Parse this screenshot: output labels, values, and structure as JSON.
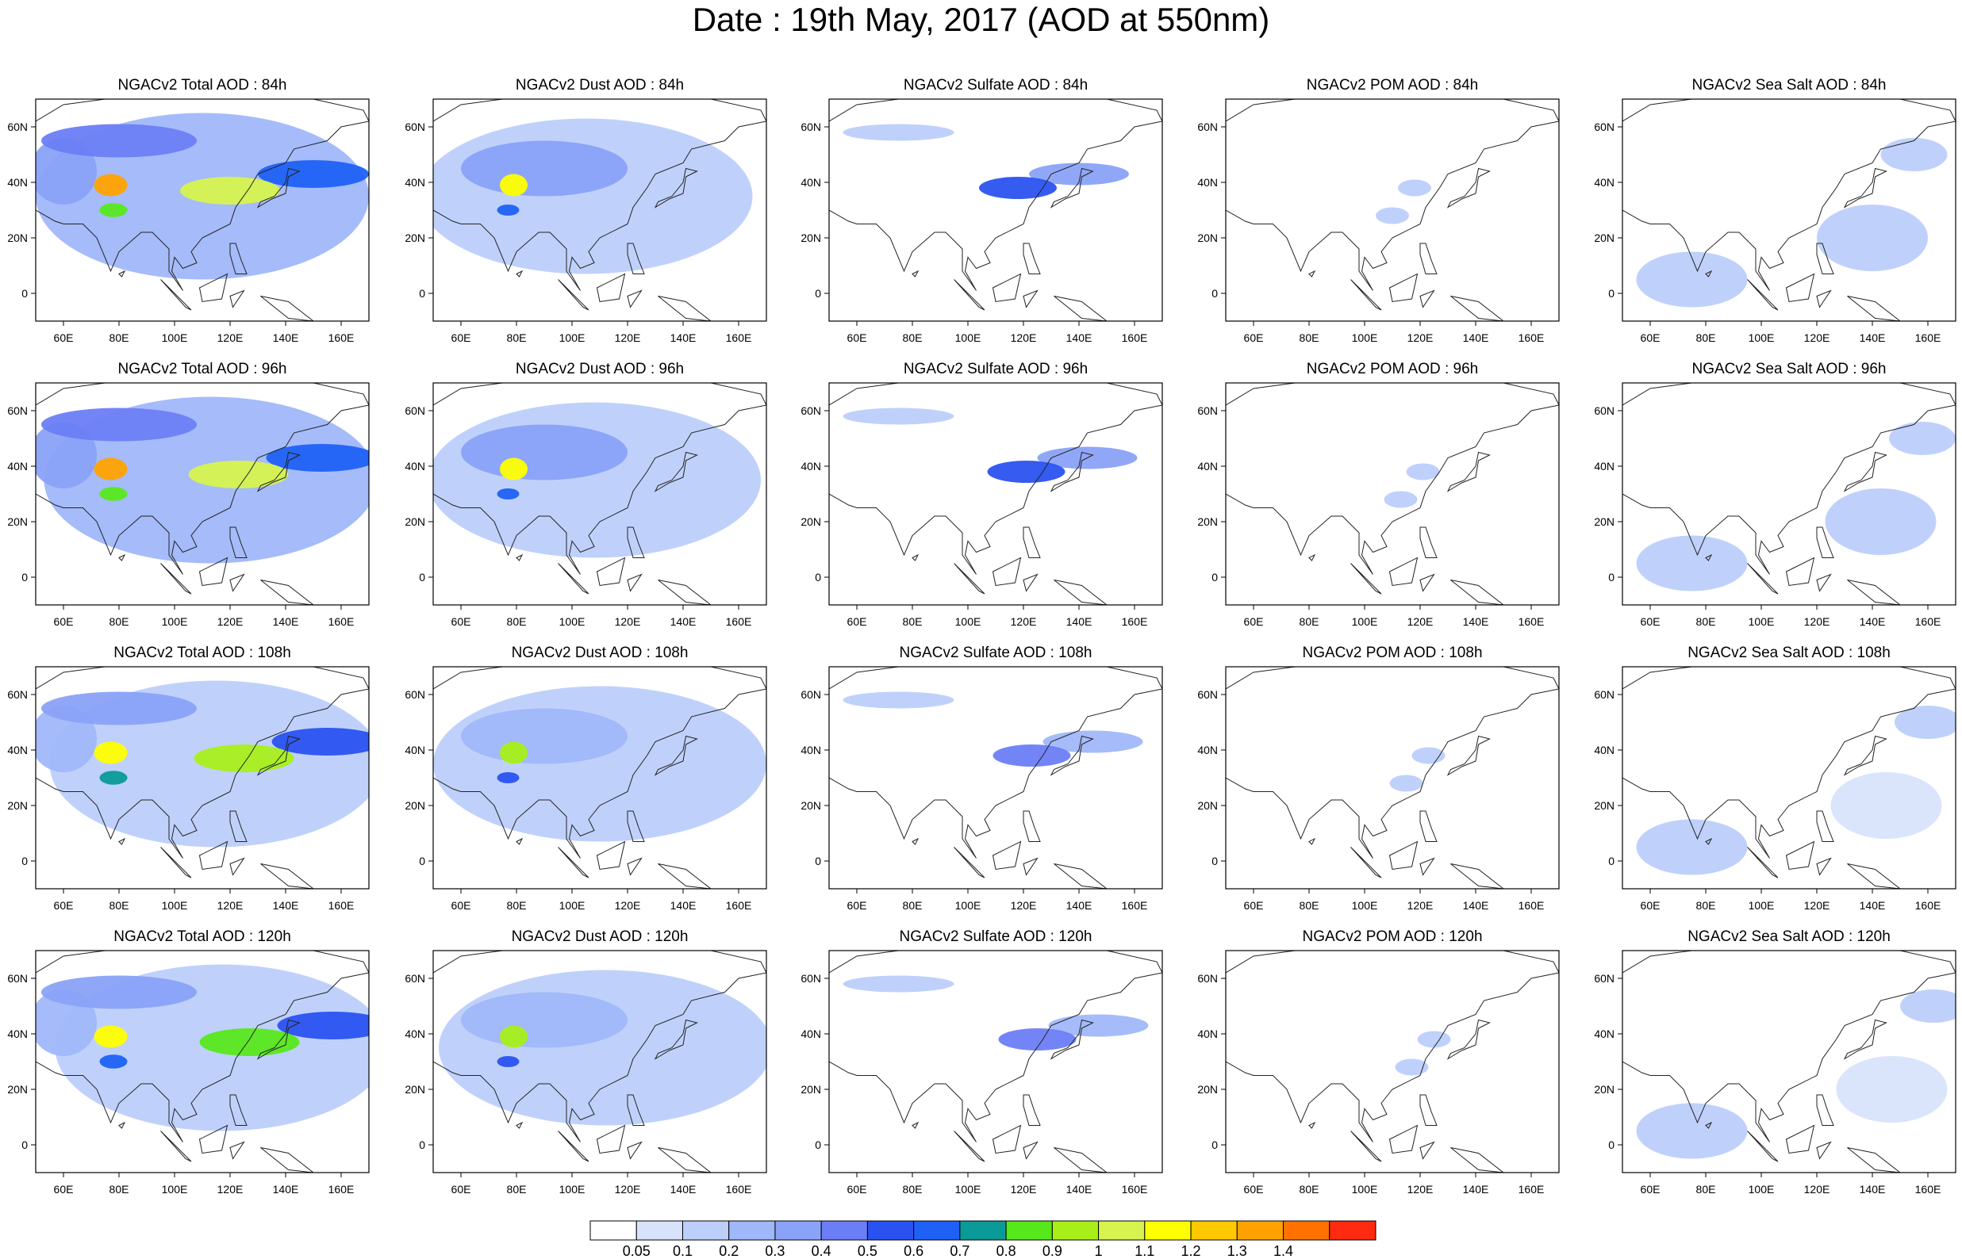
{
  "title": "Date : 19th May, 2017 (AOD at 550nm)",
  "panel_rows": [
    {
      "forecast_hour": "84h",
      "titles": [
        "NGACv2 Total AOD : 84h",
        "NGACv2 Dust AOD : 84h",
        "NGACv2 Sulfate AOD : 84h",
        "NGACv2 POM AOD : 84h",
        "NGACv2 Sea Salt AOD : 84h"
      ]
    },
    {
      "forecast_hour": "96h",
      "titles": [
        "NGACv2 Total AOD : 96h",
        "NGACv2 Dust AOD : 96h",
        "NGACv2 Sulfate AOD : 96h",
        "NGACv2 POM AOD : 96h",
        "NGACv2 Sea Salt AOD : 96h"
      ]
    },
    {
      "forecast_hour": "108h",
      "titles": [
        "NGACv2 Total AOD : 108h",
        "NGACv2 Dust AOD : 108h",
        "NGACv2 Sulfate AOD : 108h",
        "NGACv2 POM AOD : 108h",
        "NGACv2 Sea Salt AOD : 108h"
      ]
    },
    {
      "forecast_hour": "120h",
      "titles": [
        "NGACv2 Total AOD : 120h",
        "NGACv2 Dust AOD : 120h",
        "NGACv2 Sulfate AOD : 120h",
        "NGACv2 POM AOD : 120h",
        "NGACv2 Sea Salt  AOD : 120h"
      ]
    }
  ],
  "map_axes": {
    "lon_ticks": [
      "60E",
      "80E",
      "100E",
      "120E",
      "140E",
      "160E"
    ],
    "lat_ticks": [
      "60N",
      "40N",
      "20N",
      "0"
    ],
    "lon_range": [
      50,
      170
    ],
    "lat_range": [
      -10,
      70
    ]
  },
  "colorbar": {
    "labels": [
      "0.05",
      "0.1",
      "0.2",
      "0.3",
      "0.4",
      "0.5",
      "0.6",
      "0.7",
      "0.8",
      "0.9",
      "1",
      "1.1",
      "1.2",
      "1.3",
      "1.4"
    ],
    "colors": [
      "#ffffff",
      "#d8e3fb",
      "#bccffb",
      "#a0b7fa",
      "#8aa2f8",
      "#6c7ef5",
      "#2a52f0",
      "#1f61f5",
      "#0a9a98",
      "#57e81c",
      "#a8ef1a",
      "#d6f34f",
      "#ffff00",
      "#ffc800",
      "#ffa200",
      "#ff7200",
      "#ff2a10"
    ]
  },
  "chart_data": {
    "type": "heatmap",
    "variable": "AOD at 550nm",
    "levels": [
      0.05,
      0.1,
      0.2,
      0.3,
      0.4,
      0.5,
      0.6,
      0.7,
      0.8,
      0.9,
      1,
      1.1,
      1.2,
      1.3,
      1.4
    ],
    "species": [
      "Total",
      "Dust",
      "Sulfate",
      "POM",
      "Sea Salt"
    ],
    "forecast_hours": [
      "84h",
      "96h",
      "108h",
      "120h"
    ],
    "xlim": [
      50,
      170
    ],
    "ylim": [
      -10,
      70
    ],
    "features": {
      "Total": [
        {
          "lon": 77,
          "lat": 39,
          "rx": 6,
          "ry": 4,
          "v": 1.3
        },
        {
          "lon": 78,
          "lat": 30,
          "rx": 5,
          "ry": 2.5,
          "v": 0.8
        },
        {
          "lon": 120,
          "lat": 37,
          "rx": 18,
          "ry": 5,
          "v": 1.0
        },
        {
          "lon": 150,
          "lat": 43,
          "rx": 20,
          "ry": 5,
          "v": 0.6
        },
        {
          "lon": 80,
          "lat": 55,
          "rx": 28,
          "ry": 6,
          "v": 0.4
        },
        {
          "lon": 60,
          "lat": 44,
          "rx": 12,
          "ry": 12,
          "v": 0.3
        },
        {
          "lon": 110,
          "lat": 35,
          "rx": 60,
          "ry": 30,
          "v": 0.2
        }
      ],
      "Dust": [
        {
          "lon": 79,
          "lat": 39,
          "rx": 5,
          "ry": 4,
          "v": 1.1
        },
        {
          "lon": 77,
          "lat": 30,
          "rx": 4,
          "ry": 2,
          "v": 0.6
        },
        {
          "lon": 90,
          "lat": 45,
          "rx": 30,
          "ry": 10,
          "v": 0.3
        },
        {
          "lon": 105,
          "lat": 35,
          "rx": 60,
          "ry": 28,
          "v": 0.15
        }
      ],
      "Sulfate": [
        {
          "lon": 118,
          "lat": 38,
          "rx": 14,
          "ry": 4,
          "v": 0.5
        },
        {
          "lon": 140,
          "lat": 43,
          "rx": 18,
          "ry": 4,
          "v": 0.3
        },
        {
          "lon": 75,
          "lat": 58,
          "rx": 20,
          "ry": 3,
          "v": 0.12
        }
      ],
      "POM": [
        {
          "lon": 118,
          "lat": 38,
          "rx": 6,
          "ry": 3,
          "v": 0.15
        },
        {
          "lon": 110,
          "lat": 28,
          "rx": 6,
          "ry": 3,
          "v": 0.12
        }
      ],
      "Sea Salt": [
        {
          "lon": 75,
          "lat": 5,
          "rx": 20,
          "ry": 10,
          "v": 0.12
        },
        {
          "lon": 140,
          "lat": 20,
          "rx": 20,
          "ry": 12,
          "v": 0.1
        },
        {
          "lon": 155,
          "lat": 50,
          "rx": 12,
          "ry": 6,
          "v": 0.12
        }
      ]
    }
  }
}
